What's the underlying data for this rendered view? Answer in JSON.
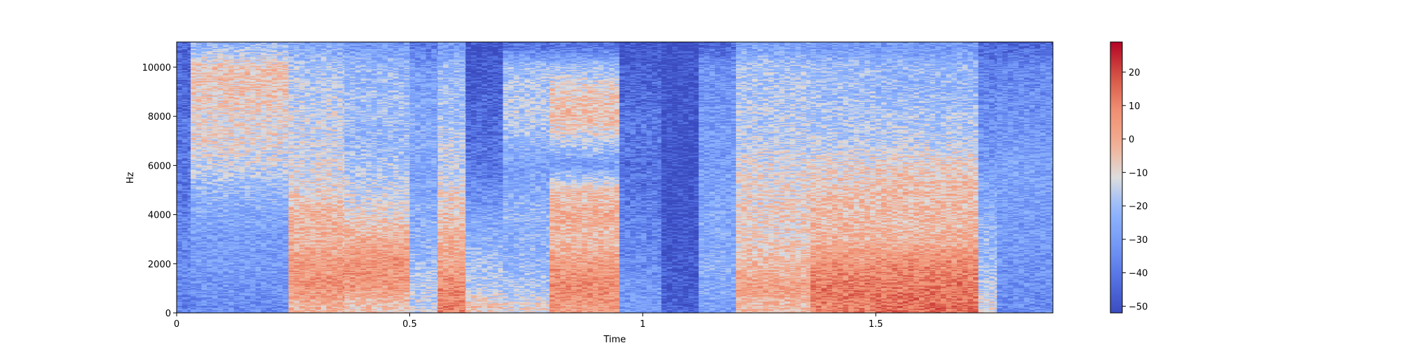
{
  "chart_data": {
    "type": "heatmap",
    "title": "",
    "xlabel": "Time",
    "ylabel": "Hz",
    "xlim": [
      0,
      1.88
    ],
    "ylim": [
      0,
      11025
    ],
    "x_ticks": [
      0,
      0.5,
      1,
      1.5
    ],
    "x_tick_labels": [
      "0",
      "0.5",
      "1",
      "1.5"
    ],
    "y_ticks": [
      0,
      2000,
      4000,
      6000,
      8000,
      10000
    ],
    "y_tick_labels": [
      "0",
      "2000",
      "4000",
      "6000",
      "8000",
      "10000"
    ],
    "colorbar": {
      "colormap": "coolwarm",
      "vmin": -52,
      "vmax": 29,
      "ticks": [
        20,
        10,
        0,
        -10,
        -20,
        -30,
        -40,
        -50
      ],
      "tick_labels": [
        "20",
        "10",
        "0",
        "−10",
        "−20",
        "−30",
        "−40",
        "−50"
      ]
    },
    "colors": {
      "low": "#3b4cc0",
      "mid": "#dddddd",
      "high": "#b40426"
    },
    "grid": false,
    "time_segments": [
      {
        "t_start": 0.0,
        "t_end": 0.03,
        "levels_db": [
          -38,
          -36,
          -35,
          -36,
          -38,
          -40,
          -40,
          -40,
          -42,
          -44,
          -44,
          -44
        ]
      },
      {
        "t_start": 0.03,
        "t_end": 0.24,
        "levels_db": [
          -34,
          -32,
          -30,
          -30,
          -26,
          -22,
          -15,
          -10,
          -10,
          -6,
          -6,
          -22
        ]
      },
      {
        "t_start": 0.24,
        "t_end": 0.36,
        "levels_db": [
          -2,
          6,
          4,
          -2,
          -2,
          -10,
          -12,
          -14,
          -14,
          -16,
          -18,
          -26
        ]
      },
      {
        "t_start": 0.36,
        "t_end": 0.5,
        "levels_db": [
          -6,
          4,
          6,
          0,
          -10,
          -14,
          -18,
          -22,
          -20,
          -20,
          -22,
          -30
        ]
      },
      {
        "t_start": 0.5,
        "t_end": 0.56,
        "levels_db": [
          -14,
          -16,
          -20,
          -24,
          -24,
          -26,
          -28,
          -26,
          -26,
          -28,
          -30,
          -40
        ]
      },
      {
        "t_start": 0.56,
        "t_end": 0.62,
        "levels_db": [
          10,
          8,
          2,
          -2,
          -6,
          -10,
          -16,
          -14,
          -20,
          -20,
          -22,
          -30
        ]
      },
      {
        "t_start": 0.62,
        "t_end": 0.7,
        "levels_db": [
          -6,
          -16,
          -20,
          -24,
          -28,
          -34,
          -40,
          -42,
          -44,
          -46,
          -48,
          -50
        ]
      },
      {
        "t_start": 0.7,
        "t_end": 0.8,
        "levels_db": [
          -10,
          -18,
          -22,
          -24,
          -22,
          -26,
          -28,
          -22,
          -16,
          -18,
          -20,
          -40
        ]
      },
      {
        "t_start": 0.8,
        "t_end": 0.95,
        "levels_db": [
          4,
          8,
          4,
          -4,
          0,
          -6,
          -30,
          -16,
          -4,
          -8,
          -20,
          -40
        ]
      },
      {
        "t_start": 0.95,
        "t_end": 1.04,
        "levels_db": [
          -30,
          -30,
          -34,
          -36,
          -38,
          -40,
          -42,
          -40,
          -40,
          -44,
          -46,
          -50
        ]
      },
      {
        "t_start": 1.04,
        "t_end": 1.12,
        "levels_db": [
          -46,
          -48,
          -48,
          -50,
          -50,
          -50,
          -50,
          -50,
          -50,
          -50,
          -50,
          -52
        ]
      },
      {
        "t_start": 1.12,
        "t_end": 1.2,
        "levels_db": [
          -28,
          -26,
          -24,
          -26,
          -26,
          -28,
          -30,
          -30,
          -30,
          -32,
          -32,
          -44
        ]
      },
      {
        "t_start": 1.2,
        "t_end": 1.36,
        "levels_db": [
          -4,
          4,
          -4,
          -8,
          -8,
          -10,
          -12,
          -16,
          -16,
          -18,
          -18,
          -28
        ]
      },
      {
        "t_start": 1.36,
        "t_end": 1.5,
        "levels_db": [
          10,
          12,
          6,
          -2,
          -4,
          -6,
          -10,
          -16,
          -18,
          -20,
          -20,
          -30
        ]
      },
      {
        "t_start": 1.5,
        "t_end": 1.72,
        "levels_db": [
          14,
          12,
          8,
          -2,
          -4,
          -4,
          -8,
          -16,
          -18,
          -22,
          -22,
          -30
        ]
      },
      {
        "t_start": 1.72,
        "t_end": 1.76,
        "levels_db": [
          -10,
          -16,
          -20,
          -22,
          -24,
          -26,
          -30,
          -32,
          -34,
          -36,
          -38,
          -44
        ]
      },
      {
        "t_start": 1.76,
        "t_end": 1.88,
        "levels_db": [
          -34,
          -34,
          -32,
          -30,
          -30,
          -28,
          -28,
          -30,
          -32,
          -34,
          -36,
          -44
        ]
      }
    ],
    "band_centers_hz": [
      300,
      1000,
      2000,
      3000,
      4000,
      5000,
      6000,
      7000,
      8000,
      9000,
      10000,
      10850
    ]
  }
}
